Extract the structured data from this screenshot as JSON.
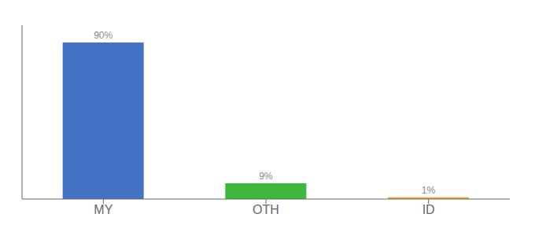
{
  "chart_data": {
    "type": "bar",
    "categories": [
      "MY",
      "OTH",
      "ID"
    ],
    "values": [
      90,
      9,
      1
    ],
    "value_labels": [
      "90%",
      "9%",
      "1%"
    ],
    "colors": [
      "#4472c4",
      "#3db83d",
      "#f0a830"
    ],
    "ylim": [
      0,
      100
    ],
    "data_labels": true,
    "tick_labels": "x",
    "grid": false
  }
}
